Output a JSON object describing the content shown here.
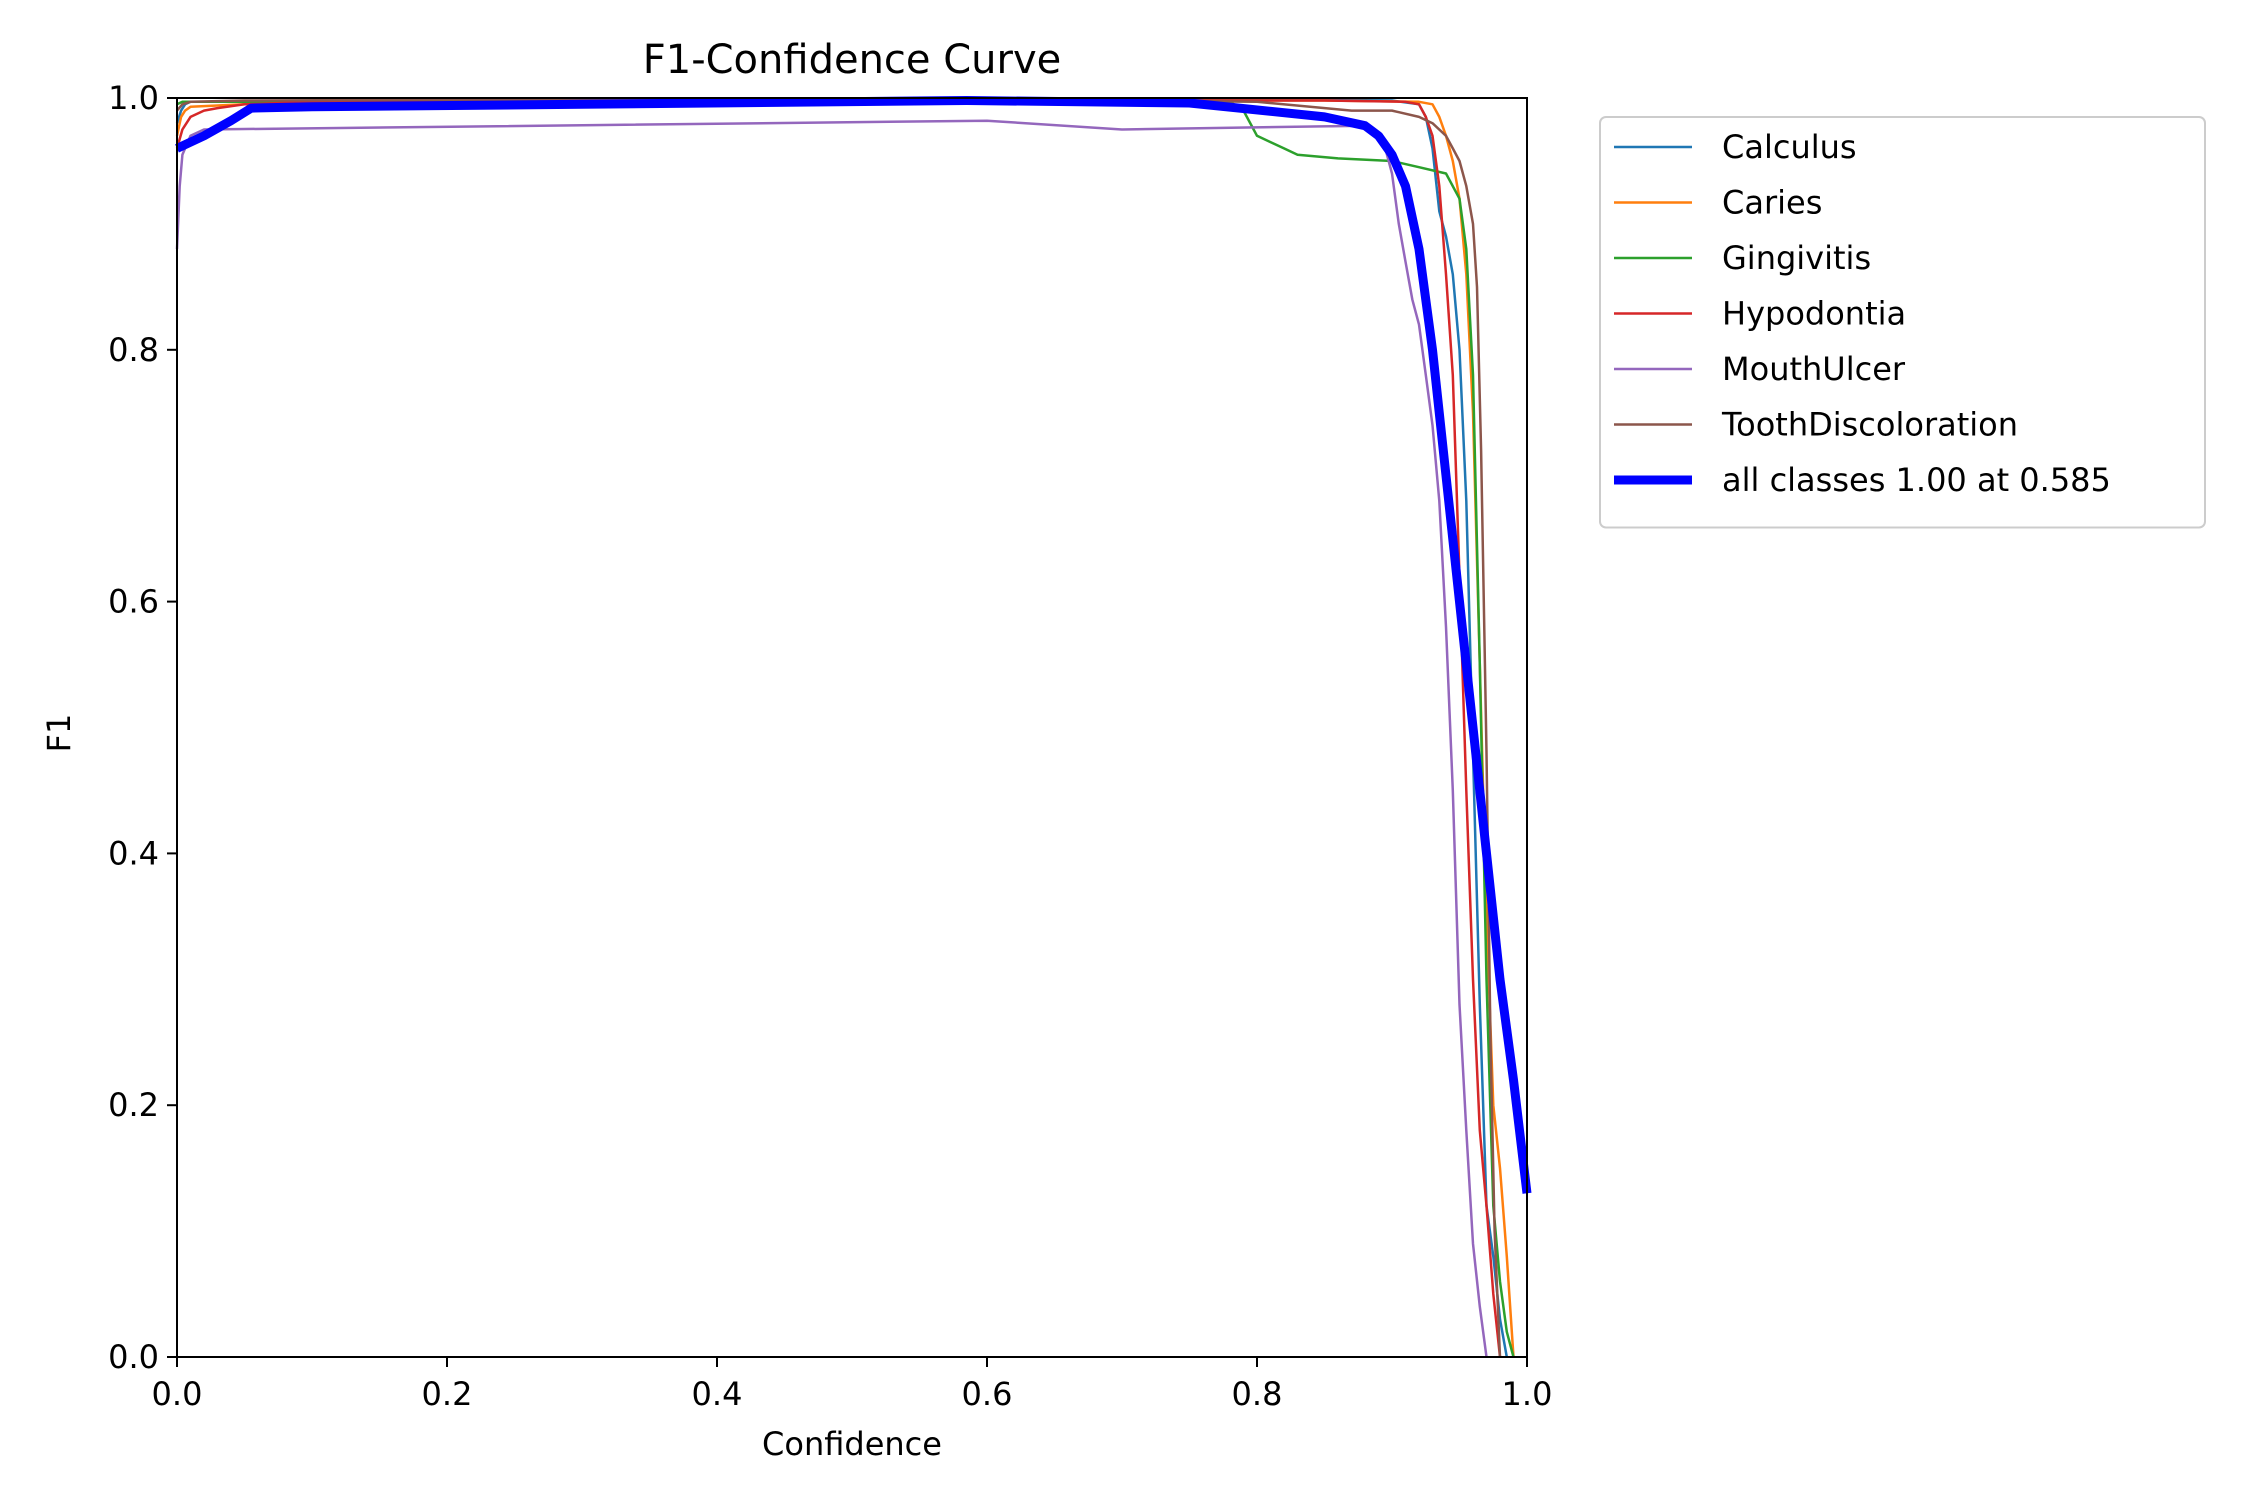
{
  "chart_data": {
    "type": "line",
    "title": "F1-Confidence Curve",
    "xlabel": "Confidence",
    "ylabel": "F1",
    "xlim": [
      0,
      1
    ],
    "ylim": [
      0,
      1
    ],
    "x_ticks": [
      "0.0",
      "0.2",
      "0.4",
      "0.6",
      "0.8",
      "1.0"
    ],
    "y_ticks": [
      "0.0",
      "0.2",
      "0.4",
      "0.6",
      "0.8",
      "1.0"
    ],
    "grid": false,
    "legend_position": "outside-top-right",
    "series": [
      {
        "name": "Calculus",
        "color": "#1f77b4",
        "x": [
          0.0,
          0.003,
          0.006,
          0.01,
          0.05,
          0.2,
          0.5,
          0.8,
          0.9,
          0.92,
          0.925,
          0.93,
          0.935,
          0.94,
          0.945,
          0.95,
          0.955,
          0.96,
          0.965,
          0.97,
          0.975,
          0.98,
          0.985
        ],
        "y": [
          0.98,
          0.99,
          0.995,
          0.997,
          0.997,
          0.998,
          0.999,
          0.999,
          0.998,
          0.995,
          0.985,
          0.96,
          0.91,
          0.89,
          0.86,
          0.8,
          0.68,
          0.48,
          0.28,
          0.12,
          0.08,
          0.03,
          0.0
        ]
      },
      {
        "name": "Caries",
        "color": "#ff7f0e",
        "x": [
          0.0,
          0.003,
          0.006,
          0.01,
          0.05,
          0.3,
          0.6,
          0.85,
          0.92,
          0.93,
          0.935,
          0.94,
          0.945,
          0.95,
          0.955,
          0.96,
          0.965,
          0.97,
          0.975,
          0.98,
          0.985,
          0.99
        ],
        "y": [
          0.97,
          0.985,
          0.99,
          0.993,
          0.995,
          0.997,
          0.998,
          0.998,
          0.997,
          0.995,
          0.985,
          0.97,
          0.95,
          0.92,
          0.86,
          0.75,
          0.55,
          0.35,
          0.2,
          0.15,
          0.08,
          0.0
        ]
      },
      {
        "name": "Gingivitis",
        "color": "#2ca02c",
        "x": [
          0.0,
          0.004,
          0.01,
          0.05,
          0.3,
          0.6,
          0.78,
          0.79,
          0.8,
          0.81,
          0.82,
          0.83,
          0.86,
          0.9,
          0.92,
          0.94,
          0.95,
          0.955,
          0.96,
          0.965,
          0.97,
          0.975,
          0.98,
          0.985,
          0.99
        ],
        "y": [
          0.995,
          0.997,
          0.997,
          0.997,
          0.998,
          0.998,
          0.997,
          0.99,
          0.97,
          0.965,
          0.96,
          0.955,
          0.952,
          0.95,
          0.945,
          0.94,
          0.92,
          0.88,
          0.78,
          0.55,
          0.3,
          0.12,
          0.06,
          0.02,
          0.0
        ]
      },
      {
        "name": "Hypodontia",
        "color": "#d62728",
        "x": [
          0.0,
          0.004,
          0.01,
          0.02,
          0.03,
          0.05,
          0.1,
          0.3,
          0.6,
          0.85,
          0.91,
          0.92,
          0.925,
          0.93,
          0.935,
          0.94,
          0.945,
          0.95,
          0.955,
          0.96,
          0.965,
          0.97,
          0.975,
          0.98
        ],
        "y": [
          0.96,
          0.975,
          0.985,
          0.99,
          0.992,
          0.995,
          0.997,
          0.998,
          0.998,
          0.998,
          0.997,
          0.995,
          0.985,
          0.97,
          0.93,
          0.86,
          0.78,
          0.62,
          0.45,
          0.3,
          0.18,
          0.12,
          0.05,
          0.0
        ]
      },
      {
        "name": "MouthUlcer",
        "color": "#9467bd",
        "x": [
          0.0,
          0.002,
          0.004,
          0.006,
          0.01,
          0.02,
          0.6,
          0.7,
          0.88,
          0.89,
          0.895,
          0.9,
          0.905,
          0.91,
          0.915,
          0.92,
          0.925,
          0.93,
          0.935,
          0.94,
          0.945,
          0.95,
          0.955,
          0.96,
          0.965,
          0.97
        ],
        "y": [
          0.88,
          0.93,
          0.955,
          0.96,
          0.97,
          0.975,
          0.982,
          0.975,
          0.978,
          0.97,
          0.96,
          0.94,
          0.9,
          0.87,
          0.84,
          0.82,
          0.78,
          0.74,
          0.68,
          0.58,
          0.45,
          0.28,
          0.18,
          0.09,
          0.04,
          0.0
        ]
      },
      {
        "name": "ToothDiscoloration",
        "color": "#8c564b",
        "x": [
          0.0,
          0.004,
          0.01,
          0.05,
          0.3,
          0.6,
          0.8,
          0.87,
          0.9,
          0.92,
          0.93,
          0.94,
          0.945,
          0.95,
          0.955,
          0.96,
          0.963,
          0.966,
          0.97,
          0.973,
          0.976,
          0.98
        ],
        "y": [
          0.99,
          0.995,
          0.997,
          0.998,
          0.999,
          0.999,
          0.997,
          0.99,
          0.99,
          0.985,
          0.98,
          0.97,
          0.96,
          0.95,
          0.93,
          0.9,
          0.85,
          0.72,
          0.48,
          0.25,
          0.1,
          0.0
        ]
      },
      {
        "name": "all classes 1.00 at 0.585",
        "color": "#0000ff",
        "bold": true,
        "x": [
          0.0,
          0.02,
          0.04,
          0.055,
          0.1,
          0.3,
          0.585,
          0.75,
          0.85,
          0.88,
          0.89,
          0.9,
          0.91,
          0.92,
          0.93,
          0.94,
          0.95,
          0.96,
          0.97,
          0.98,
          0.99,
          1.0
        ],
        "y": [
          0.96,
          0.97,
          0.982,
          0.992,
          0.993,
          0.995,
          0.998,
          0.996,
          0.985,
          0.978,
          0.97,
          0.955,
          0.93,
          0.88,
          0.8,
          0.7,
          0.6,
          0.5,
          0.4,
          0.3,
          0.22,
          0.13
        ]
      }
    ]
  }
}
